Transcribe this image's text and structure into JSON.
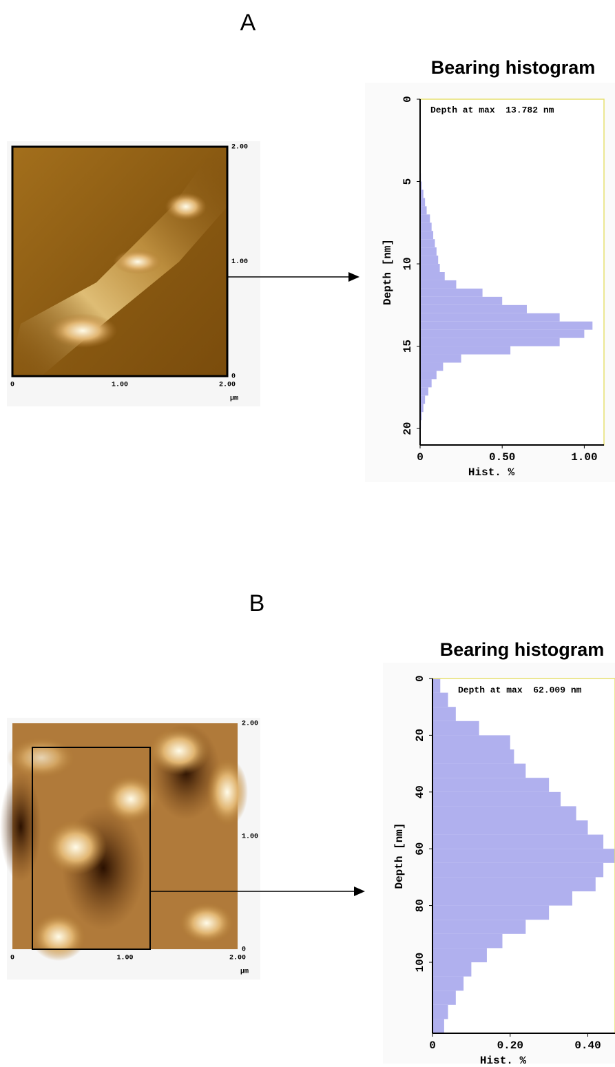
{
  "panels": [
    {
      "label": "A",
      "image": {
        "xticks": [
          0,
          {
            "value": 1,
            "label": "1.00"
          },
          {
            "value": 2,
            "label": "2.00"
          }
        ],
        "yticks": [
          0,
          {
            "value": 1,
            "label": "1.00"
          },
          {
            "value": 2,
            "label": "2.00"
          }
        ],
        "unit": "µm"
      }
    },
    {
      "label": "B",
      "image": {
        "xticks": [
          0,
          {
            "value": 1,
            "label": "1.00"
          },
          {
            "value": 2,
            "label": "2.00"
          }
        ],
        "yticks": [
          0,
          {
            "value": 1,
            "label": "1.00"
          },
          {
            "value": 2,
            "label": "2.00"
          }
        ],
        "unit": "µm"
      }
    }
  ],
  "chart_data": [
    {
      "type": "histogram",
      "orientation": "horizontal",
      "title": "Bearing histogram",
      "annotation": "Depth at max  13.782 nm",
      "ylabel": "Depth [nm]",
      "xlabel": "Hist. %",
      "color": "#b0b0ee",
      "bins": [
        0,
        0.5,
        1,
        1.5,
        2,
        2.5,
        3,
        3.5,
        4,
        4.5,
        5,
        5.5,
        6,
        6.5,
        7,
        7.5,
        8,
        8.5,
        9,
        9.5,
        10,
        10.5,
        11,
        11.5,
        12,
        12.5,
        13,
        13.5,
        14,
        14.5,
        15,
        15.5,
        16,
        16.5,
        17,
        17.5,
        18,
        18.5,
        19,
        19.5,
        20,
        20.5,
        21
      ],
      "values": [
        0,
        0,
        0,
        0,
        0,
        0,
        0,
        0,
        0,
        0.005,
        0.01,
        0.02,
        0.03,
        0.04,
        0.06,
        0.07,
        0.08,
        0.09,
        0.1,
        0.11,
        0.12,
        0.15,
        0.22,
        0.38,
        0.5,
        0.65,
        0.85,
        1.05,
        1.0,
        0.85,
        0.55,
        0.25,
        0.14,
        0.1,
        0.07,
        0.05,
        0.03,
        0.02,
        0.01,
        0.005,
        0,
        0
      ],
      "xlim": [
        0,
        1.12
      ],
      "ylim": [
        0,
        21
      ],
      "xticks": [
        0,
        {
          "value": 0.5,
          "label": "0.50"
        },
        {
          "value": 1,
          "label": "1.00"
        }
      ],
      "yticks": [
        0,
        5,
        10,
        15,
        20
      ]
    },
    {
      "type": "histogram",
      "orientation": "horizontal",
      "title": "Bearing histogram",
      "annotation": "Depth at max  62.009 nm",
      "ylabel": "Depth [nm]",
      "xlabel": "Hist. %",
      "color": "#b0b0ee",
      "bins": [
        0,
        5,
        10,
        15,
        20,
        25,
        30,
        35,
        40,
        45,
        50,
        55,
        60,
        65,
        70,
        75,
        80,
        85,
        90,
        95,
        100,
        105,
        110,
        115,
        120,
        125
      ],
      "values": [
        0.02,
        0.04,
        0.06,
        0.12,
        0.2,
        0.21,
        0.24,
        0.3,
        0.33,
        0.37,
        0.4,
        0.44,
        0.47,
        0.44,
        0.42,
        0.36,
        0.3,
        0.24,
        0.18,
        0.14,
        0.1,
        0.08,
        0.06,
        0.04,
        0.03
      ],
      "xlim": [
        0,
        0.47
      ],
      "ylim": [
        0,
        125
      ],
      "xticks": [
        0,
        {
          "value": 0.2,
          "label": "0.20"
        },
        {
          "value": 0.4,
          "label": "0.40"
        }
      ],
      "yticks": [
        0,
        20,
        40,
        60,
        80,
        100
      ]
    }
  ]
}
